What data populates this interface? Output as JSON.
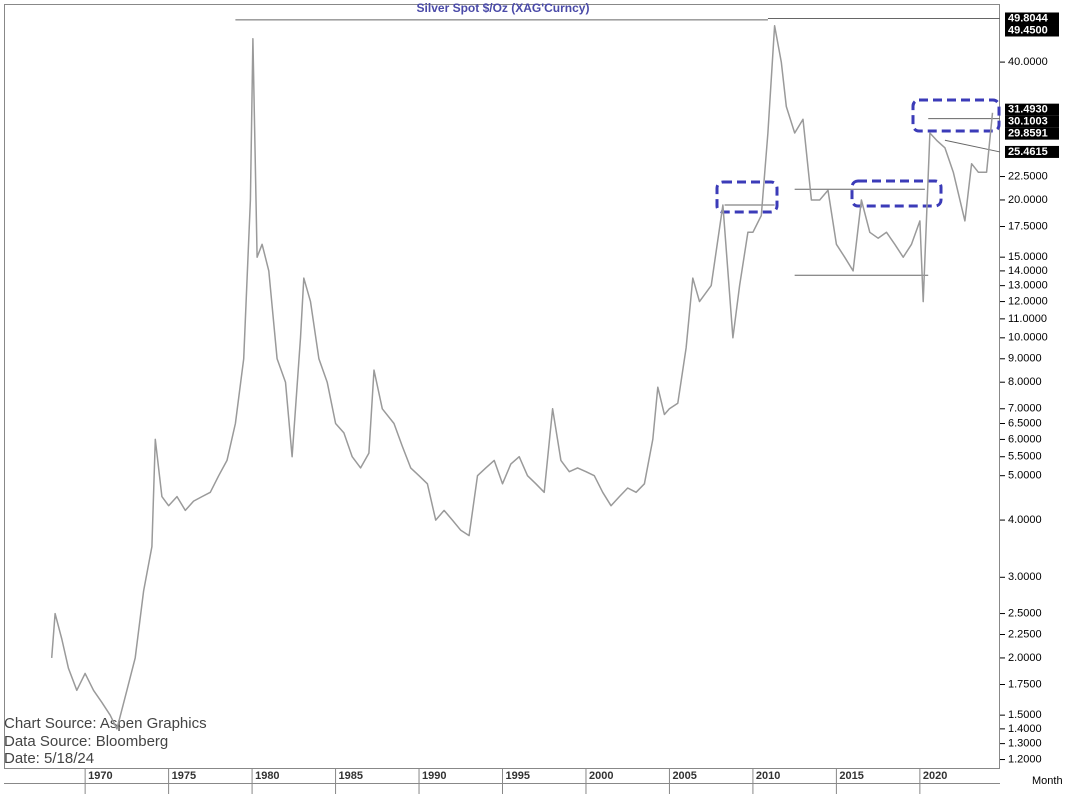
{
  "chart_data": {
    "type": "line",
    "title": "Silver Spot   $/Oz  (XAG'Curncy)",
    "annotations": [
      "Chart Source:  Aspen  Graphics",
      "Data  Source:  Bloomberg",
      "Date:    5/18/24"
    ],
    "x_axis_label": "Month",
    "log_scale": true,
    "x": [
      1968.0,
      1968.2,
      1968.6,
      1969.0,
      1969.5,
      1970.0,
      1970.5,
      1971.0,
      1971.5,
      1971.9,
      1972.5,
      1973.0,
      1973.5,
      1974.0,
      1974.2,
      1974.6,
      1975.0,
      1975.5,
      1976.0,
      1976.5,
      1977.0,
      1977.5,
      1978.0,
      1978.5,
      1979.0,
      1979.5,
      1979.9,
      1980.05,
      1980.3,
      1980.6,
      1981.0,
      1981.5,
      1982.0,
      1982.4,
      1982.9,
      1983.1,
      1983.5,
      1984.0,
      1984.5,
      1985.0,
      1985.5,
      1986.0,
      1986.5,
      1987.0,
      1987.3,
      1987.8,
      1988.5,
      1989.0,
      1989.5,
      1990.0,
      1990.5,
      1991.0,
      1991.5,
      1992.0,
      1992.5,
      1993.0,
      1993.5,
      1994.0,
      1994.5,
      1995.0,
      1995.5,
      1996.0,
      1996.5,
      1997.0,
      1997.5,
      1998.0,
      1998.5,
      1999.0,
      1999.5,
      2000.0,
      2000.5,
      2001.0,
      2001.5,
      2002.0,
      2002.5,
      2003.0,
      2003.5,
      2004.0,
      2004.3,
      2004.7,
      2005.0,
      2005.5,
      2006.0,
      2006.4,
      2006.8,
      2007.5,
      2008.2,
      2008.8,
      2009.2,
      2009.7,
      2010.0,
      2010.5,
      2010.9,
      2011.3,
      2011.7,
      2012.0,
      2012.5,
      2013.0,
      2013.5,
      2014.0,
      2014.5,
      2015.0,
      2015.5,
      2016.0,
      2016.5,
      2017.0,
      2017.5,
      2018.0,
      2018.5,
      2019.0,
      2019.5,
      2020.0,
      2020.2,
      2020.6,
      2021.0,
      2021.5,
      2022.0,
      2022.7,
      2023.1,
      2023.5,
      2024.0,
      2024.35
    ],
    "series": [
      {
        "name": "Silver Spot",
        "color": "#9a9a9a",
        "values": [
          2.0,
          2.5,
          2.2,
          1.9,
          1.7,
          1.85,
          1.7,
          1.6,
          1.5,
          1.4,
          1.7,
          2.0,
          2.8,
          3.5,
          6.0,
          4.5,
          4.3,
          4.5,
          4.2,
          4.4,
          4.5,
          4.6,
          5.0,
          5.4,
          6.5,
          9.0,
          20,
          45,
          15,
          16,
          14,
          9,
          8,
          5.5,
          10,
          13.5,
          12,
          9,
          8,
          6.5,
          6.2,
          5.5,
          5.2,
          5.6,
          8.5,
          7.0,
          6.5,
          5.8,
          5.2,
          5.0,
          4.8,
          4.0,
          4.2,
          4.0,
          3.8,
          3.7,
          5.0,
          5.2,
          5.4,
          4.8,
          5.3,
          5.5,
          5.0,
          4.8,
          4.6,
          7.0,
          5.4,
          5.1,
          5.2,
          5.1,
          5.0,
          4.6,
          4.3,
          4.5,
          4.7,
          4.6,
          4.8,
          6.0,
          7.8,
          6.8,
          7.0,
          7.2,
          9.5,
          13.5,
          12,
          13,
          19.5,
          10,
          13,
          17,
          17,
          18.5,
          28,
          48,
          40,
          32,
          28,
          30,
          20,
          20,
          21,
          16,
          15,
          14,
          20,
          17,
          16.5,
          17,
          16,
          15,
          16,
          18,
          12,
          28,
          27,
          26,
          23,
          18,
          24,
          23,
          23,
          31
        ]
      }
    ],
    "trend_lines": [
      {
        "x": [
          1979.0,
          2010.9
        ],
        "y": [
          49.45,
          49.45
        ]
      },
      {
        "x": [
          2010.9,
          2024.8
        ],
        "y": [
          49.8044,
          49.8044
        ]
      },
      {
        "x": [
          2008.3,
          2011.3
        ],
        "y": [
          19.5,
          19.5
        ]
      },
      {
        "x": [
          2012.5,
          2020.3
        ],
        "y": [
          21.1,
          21.1
        ]
      },
      {
        "x": [
          2012.5,
          2020.5
        ],
        "y": [
          13.7,
          13.7
        ]
      },
      {
        "x": [
          2020.5,
          2024.8
        ],
        "y": [
          30.1003,
          30.1003
        ]
      },
      {
        "x": [
          2021.5,
          2024.8
        ],
        "y": [
          27.0,
          25.4615
        ]
      }
    ],
    "xlim": [
      1965.2,
      2024.8
    ],
    "ylim": [
      1.15,
      53.3
    ],
    "xticks": [
      1970,
      1975,
      1980,
      1985,
      1990,
      1995,
      2000,
      2005,
      2010,
      2015,
      2020
    ],
    "yticks": [
      {
        "value": 1.2,
        "label": "1.2000"
      },
      {
        "value": 1.3,
        "label": "1.3000"
      },
      {
        "value": 1.4,
        "label": "1.4000"
      },
      {
        "value": 1.5,
        "label": "1.5000"
      },
      {
        "value": 1.75,
        "label": "1.7500"
      },
      {
        "value": 2,
        "label": "2.0000"
      },
      {
        "value": 2.25,
        "label": "2.2500"
      },
      {
        "value": 2.5,
        "label": "2.5000"
      },
      {
        "value": 3,
        "label": "3.0000"
      },
      {
        "value": 4,
        "label": "4.0000"
      },
      {
        "value": 5,
        "label": "5.0000"
      },
      {
        "value": 5.5,
        "label": "5.5000"
      },
      {
        "value": 6,
        "label": "6.0000"
      },
      {
        "value": 6.5,
        "label": "6.5000"
      },
      {
        "value": 7,
        "label": "7.0000"
      },
      {
        "value": 8,
        "label": "8.0000"
      },
      {
        "value": 9,
        "label": "9.0000"
      },
      {
        "value": 10,
        "label": "10.0000"
      },
      {
        "value": 11,
        "label": "11.0000"
      },
      {
        "value": 12,
        "label": "12.0000"
      },
      {
        "value": 13,
        "label": "13.0000"
      },
      {
        "value": 14,
        "label": "14.0000"
      },
      {
        "value": 15,
        "label": "15.0000"
      },
      {
        "value": 17.5,
        "label": "17.5000"
      },
      {
        "value": 20,
        "label": "20.0000"
      },
      {
        "value": 22.5,
        "label": "22.5000"
      },
      {
        "value": 40,
        "label": "40.0000"
      }
    ],
    "price_labels": [
      {
        "value": 49.8044,
        "label": "49.8044"
      },
      {
        "value": 49.45,
        "label": "49.4500"
      },
      {
        "value": 31.493,
        "label": "31.4930"
      },
      {
        "value": 30.1003,
        "label": "30.1003"
      },
      {
        "value": 29.8591,
        "label": "29.8591"
      },
      {
        "value": 25.4615,
        "label": "25.4615"
      }
    ]
  }
}
